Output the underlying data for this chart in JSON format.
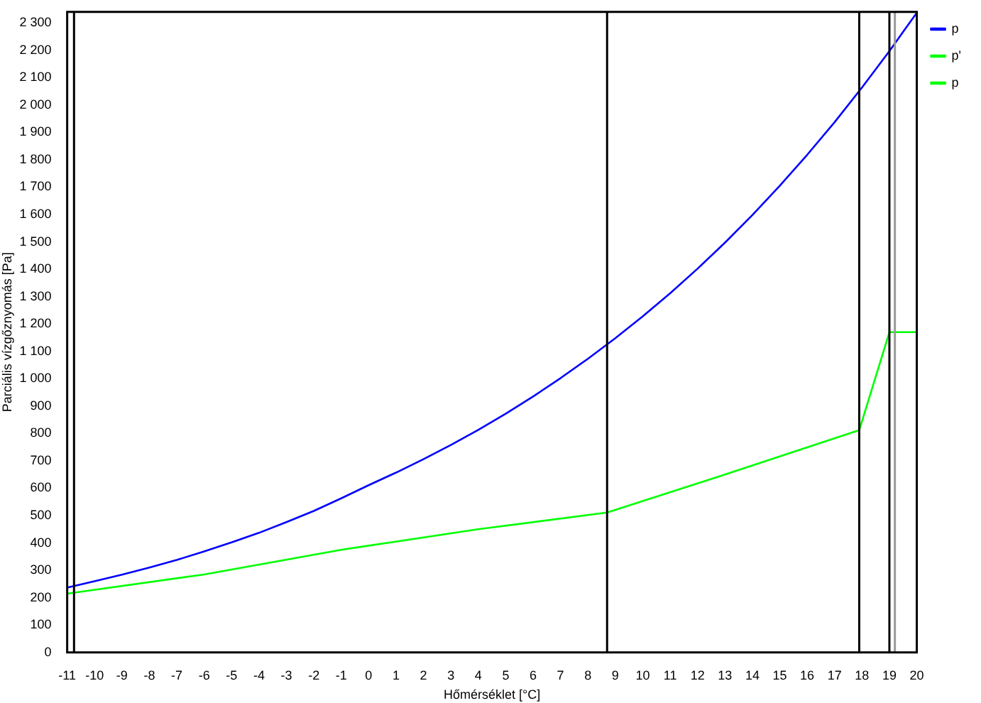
{
  "chart_data": {
    "type": "line",
    "xlabel": "Hőmérséklet [°C]",
    "ylabel": "Parciális vízgőznyomás [Pa]",
    "xlim": [
      -11,
      20
    ],
    "xticks": [
      -11,
      -10,
      -9,
      -8,
      -7,
      -6,
      -5,
      -4,
      -3,
      -2,
      -1,
      0,
      1,
      2,
      3,
      4,
      5,
      6,
      7,
      8,
      9,
      10,
      11,
      12,
      13,
      14,
      15,
      16,
      17,
      18,
      19,
      20
    ],
    "ylim": [
      0,
      2340
    ],
    "yticks": [
      0,
      100,
      200,
      300,
      400,
      500,
      600,
      700,
      800,
      900,
      {
        "value": 1000,
        "label": "1 000"
      },
      {
        "value": 1100,
        "label": "1 100"
      },
      {
        "value": 1200,
        "label": "1 200"
      },
      {
        "value": 1300,
        "label": "1 300"
      },
      {
        "value": 1400,
        "label": "1 400"
      },
      {
        "value": 1500,
        "label": "1 500"
      },
      {
        "value": 1600,
        "label": "1 600"
      },
      {
        "value": 1700,
        "label": "1 700"
      },
      {
        "value": 1800,
        "label": "1 800"
      },
      {
        "value": 1900,
        "label": "1 900"
      },
      {
        "value": 2000,
        "label": "2 000"
      },
      {
        "value": 2100,
        "label": "2 100"
      },
      {
        "value": 2200,
        "label": "2 200"
      },
      {
        "value": 2300,
        "label": "2 300"
      }
    ],
    "grid": false,
    "legend": "top right",
    "marker": "none",
    "series": [
      {
        "name": "p",
        "color": "#0000ff",
        "x": [
          -11,
          -10,
          -9,
          -8,
          -7,
          -6,
          -5,
          -4,
          -3,
          -2,
          -1,
          0,
          1,
          2,
          3,
          4,
          5,
          6,
          7,
          8,
          9,
          10,
          11,
          12,
          13,
          14,
          15,
          16,
          17,
          18,
          19,
          20
        ],
        "values": [
          237,
          260,
          284,
          310,
          338,
          369,
          402,
          437,
          476,
          517,
          563,
          611,
          657,
          706,
          758,
          813,
          872,
          935,
          1002,
          1073,
          1148,
          1228,
          1312,
          1402,
          1497,
          1598,
          1705,
          1818,
          1937,
          2064,
          2197,
          2337
        ]
      },
      {
        "name": "p'",
        "color": "#00ff00"
      },
      {
        "name": "p",
        "color": "#00ff00",
        "x": [
          -11,
          -6,
          -1,
          4,
          8.7,
          13,
          17.9,
          19,
          20
        ],
        "values": [
          215,
          285,
          375,
          450,
          511,
          650,
          812,
          1170,
          1170
        ]
      }
    ],
    "ref_lines": [
      {
        "axis": "x",
        "value": -10.75,
        "color": "#000000"
      },
      {
        "axis": "x",
        "value": 8.7,
        "color": "#000000"
      },
      {
        "axis": "x",
        "value": 17.9,
        "color": "#000000"
      },
      {
        "axis": "x",
        "value": 19,
        "color": "#000000"
      },
      {
        "axis": "x",
        "value": 19.2,
        "color": "#999999"
      }
    ]
  }
}
